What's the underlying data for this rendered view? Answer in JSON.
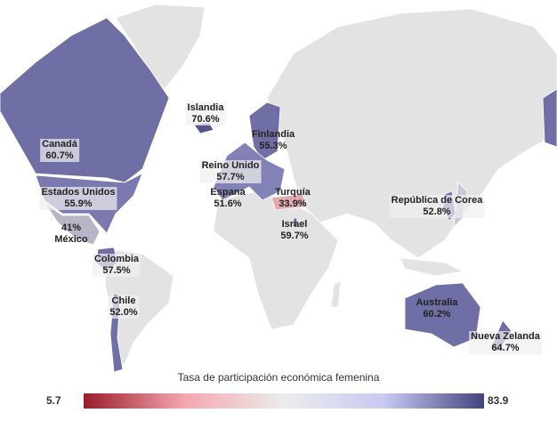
{
  "legend": {
    "title": "Tasa de participación económica femenina",
    "min": "5.7",
    "max": "83.9",
    "colors": [
      "#9b1b2b",
      "#f4a6ad",
      "#ececec",
      "#c9c9f4",
      "#44447e"
    ]
  },
  "colors": {
    "no_data": "#e3e3e3",
    "border": "#ffffff"
  },
  "countries": [
    {
      "name": "Canadá",
      "value": "60.7%"
    },
    {
      "name": "Estados Unidos",
      "value": "55.9%"
    },
    {
      "name": "México",
      "value": "41%"
    },
    {
      "name": "Colombia",
      "value": "57.5%"
    },
    {
      "name": "Chile",
      "value": "52.0%"
    },
    {
      "name": "Islandia",
      "value": "70.6%"
    },
    {
      "name": "Finlandia",
      "value": "55.3%"
    },
    {
      "name": "Reino Unido",
      "value": "57.7%"
    },
    {
      "name": "Espana",
      "value": "51.6%"
    },
    {
      "name": "Turquía",
      "value": "33.9%"
    },
    {
      "name": "Israel",
      "value": "59.7%"
    },
    {
      "name": "República de Corea",
      "value": "52.8%"
    },
    {
      "name": "Australia",
      "value": "60.2%"
    },
    {
      "name": "Nueva Zelanda",
      "value": "64.7%"
    }
  ]
}
